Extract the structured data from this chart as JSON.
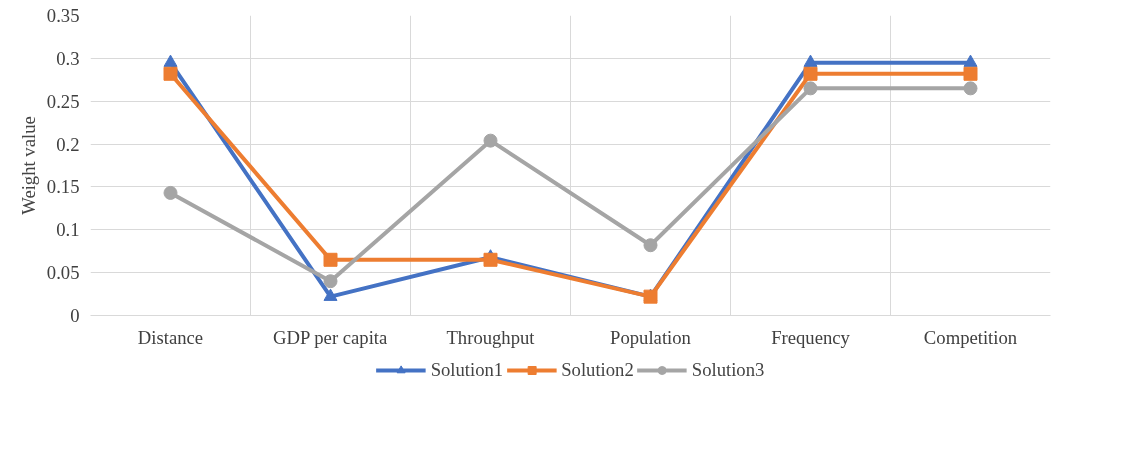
{
  "chart_data": {
    "type": "line",
    "ylabel": "Weight value",
    "categories": [
      "Distance",
      "GDP per capita",
      "Throughput",
      "Population",
      "Frequency",
      "Competition"
    ],
    "series": [
      {
        "name": "Solution1",
        "color": "#4472c4",
        "marker": "triangle",
        "values": [
          0.295,
          0.022,
          0.068,
          0.022,
          0.295,
          0.295
        ]
      },
      {
        "name": "Solution2",
        "color": "#ed7d31",
        "marker": "square",
        "values": [
          0.282,
          0.065,
          0.065,
          0.022,
          0.282,
          0.282
        ]
      },
      {
        "name": "Solution3",
        "color": "#a5a5a5",
        "marker": "circle",
        "values": [
          0.143,
          0.04,
          0.204,
          0.082,
          0.265,
          0.265
        ]
      }
    ],
    "ylim": [
      0,
      0.35
    ],
    "yticks": [
      0,
      0.05,
      0.1,
      0.15,
      0.2,
      0.25,
      0.3,
      0.35
    ],
    "grid": true,
    "legend": "bottom",
    "line_style": "solid"
  }
}
